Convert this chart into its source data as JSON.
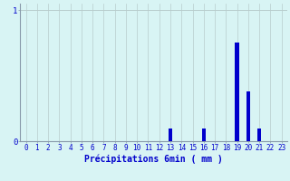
{
  "hours": [
    0,
    1,
    2,
    3,
    4,
    5,
    6,
    7,
    8,
    9,
    10,
    11,
    12,
    13,
    14,
    15,
    16,
    17,
    18,
    19,
    20,
    21,
    22,
    23
  ],
  "values": [
    0,
    0,
    0,
    0,
    0,
    0,
    0,
    0,
    0,
    0,
    0,
    0,
    0,
    0.1,
    0,
    0,
    0.1,
    0,
    0,
    0.75,
    0.38,
    0.1,
    0,
    0
  ],
  "bar_color": "#0000cc",
  "bg_color": "#d8f4f4",
  "grid_color": "#b8cccc",
  "axis_color": "#8899aa",
  "text_color": "#0000cc",
  "xlabel": "Précipitations 6min ( mm )",
  "ylim": [
    0,
    1.05
  ],
  "yticks": [
    0,
    1
  ],
  "ytick_labels": [
    "0",
    "1"
  ],
  "xlim": [
    -0.5,
    23.5
  ],
  "xlabel_fontsize": 7,
  "tick_fontsize": 5.5
}
